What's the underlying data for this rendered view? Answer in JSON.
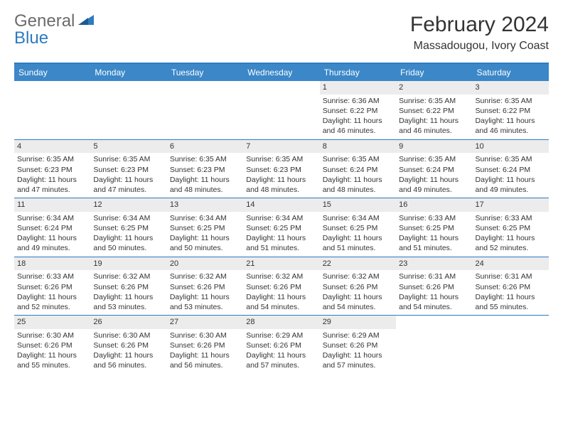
{
  "brand": {
    "text1": "General",
    "text2": "Blue"
  },
  "title": "February 2024",
  "location": "Massadougou, Ivory Coast",
  "colors": {
    "header_bar": "#3b87c8",
    "border": "#2d7bc0",
    "daynum_bg": "#ececec",
    "text": "#333333",
    "logo_gray": "#6b6b6b",
    "logo_blue": "#2d7bc0",
    "background": "#ffffff"
  },
  "weekdays": [
    "Sunday",
    "Monday",
    "Tuesday",
    "Wednesday",
    "Thursday",
    "Friday",
    "Saturday"
  ],
  "weeks": [
    [
      {
        "empty": true
      },
      {
        "empty": true
      },
      {
        "empty": true
      },
      {
        "empty": true
      },
      {
        "n": "1",
        "sunrise": "Sunrise: 6:36 AM",
        "sunset": "Sunset: 6:22 PM",
        "daylight": "Daylight: 11 hours and 46 minutes."
      },
      {
        "n": "2",
        "sunrise": "Sunrise: 6:35 AM",
        "sunset": "Sunset: 6:22 PM",
        "daylight": "Daylight: 11 hours and 46 minutes."
      },
      {
        "n": "3",
        "sunrise": "Sunrise: 6:35 AM",
        "sunset": "Sunset: 6:22 PM",
        "daylight": "Daylight: 11 hours and 46 minutes."
      }
    ],
    [
      {
        "n": "4",
        "sunrise": "Sunrise: 6:35 AM",
        "sunset": "Sunset: 6:23 PM",
        "daylight": "Daylight: 11 hours and 47 minutes."
      },
      {
        "n": "5",
        "sunrise": "Sunrise: 6:35 AM",
        "sunset": "Sunset: 6:23 PM",
        "daylight": "Daylight: 11 hours and 47 minutes."
      },
      {
        "n": "6",
        "sunrise": "Sunrise: 6:35 AM",
        "sunset": "Sunset: 6:23 PM",
        "daylight": "Daylight: 11 hours and 48 minutes."
      },
      {
        "n": "7",
        "sunrise": "Sunrise: 6:35 AM",
        "sunset": "Sunset: 6:23 PM",
        "daylight": "Daylight: 11 hours and 48 minutes."
      },
      {
        "n": "8",
        "sunrise": "Sunrise: 6:35 AM",
        "sunset": "Sunset: 6:24 PM",
        "daylight": "Daylight: 11 hours and 48 minutes."
      },
      {
        "n": "9",
        "sunrise": "Sunrise: 6:35 AM",
        "sunset": "Sunset: 6:24 PM",
        "daylight": "Daylight: 11 hours and 49 minutes."
      },
      {
        "n": "10",
        "sunrise": "Sunrise: 6:35 AM",
        "sunset": "Sunset: 6:24 PM",
        "daylight": "Daylight: 11 hours and 49 minutes."
      }
    ],
    [
      {
        "n": "11",
        "sunrise": "Sunrise: 6:34 AM",
        "sunset": "Sunset: 6:24 PM",
        "daylight": "Daylight: 11 hours and 49 minutes."
      },
      {
        "n": "12",
        "sunrise": "Sunrise: 6:34 AM",
        "sunset": "Sunset: 6:25 PM",
        "daylight": "Daylight: 11 hours and 50 minutes."
      },
      {
        "n": "13",
        "sunrise": "Sunrise: 6:34 AM",
        "sunset": "Sunset: 6:25 PM",
        "daylight": "Daylight: 11 hours and 50 minutes."
      },
      {
        "n": "14",
        "sunrise": "Sunrise: 6:34 AM",
        "sunset": "Sunset: 6:25 PM",
        "daylight": "Daylight: 11 hours and 51 minutes."
      },
      {
        "n": "15",
        "sunrise": "Sunrise: 6:34 AM",
        "sunset": "Sunset: 6:25 PM",
        "daylight": "Daylight: 11 hours and 51 minutes."
      },
      {
        "n": "16",
        "sunrise": "Sunrise: 6:33 AM",
        "sunset": "Sunset: 6:25 PM",
        "daylight": "Daylight: 11 hours and 51 minutes."
      },
      {
        "n": "17",
        "sunrise": "Sunrise: 6:33 AM",
        "sunset": "Sunset: 6:25 PM",
        "daylight": "Daylight: 11 hours and 52 minutes."
      }
    ],
    [
      {
        "n": "18",
        "sunrise": "Sunrise: 6:33 AM",
        "sunset": "Sunset: 6:26 PM",
        "daylight": "Daylight: 11 hours and 52 minutes."
      },
      {
        "n": "19",
        "sunrise": "Sunrise: 6:32 AM",
        "sunset": "Sunset: 6:26 PM",
        "daylight": "Daylight: 11 hours and 53 minutes."
      },
      {
        "n": "20",
        "sunrise": "Sunrise: 6:32 AM",
        "sunset": "Sunset: 6:26 PM",
        "daylight": "Daylight: 11 hours and 53 minutes."
      },
      {
        "n": "21",
        "sunrise": "Sunrise: 6:32 AM",
        "sunset": "Sunset: 6:26 PM",
        "daylight": "Daylight: 11 hours and 54 minutes."
      },
      {
        "n": "22",
        "sunrise": "Sunrise: 6:32 AM",
        "sunset": "Sunset: 6:26 PM",
        "daylight": "Daylight: 11 hours and 54 minutes."
      },
      {
        "n": "23",
        "sunrise": "Sunrise: 6:31 AM",
        "sunset": "Sunset: 6:26 PM",
        "daylight": "Daylight: 11 hours and 54 minutes."
      },
      {
        "n": "24",
        "sunrise": "Sunrise: 6:31 AM",
        "sunset": "Sunset: 6:26 PM",
        "daylight": "Daylight: 11 hours and 55 minutes."
      }
    ],
    [
      {
        "n": "25",
        "sunrise": "Sunrise: 6:30 AM",
        "sunset": "Sunset: 6:26 PM",
        "daylight": "Daylight: 11 hours and 55 minutes."
      },
      {
        "n": "26",
        "sunrise": "Sunrise: 6:30 AM",
        "sunset": "Sunset: 6:26 PM",
        "daylight": "Daylight: 11 hours and 56 minutes."
      },
      {
        "n": "27",
        "sunrise": "Sunrise: 6:30 AM",
        "sunset": "Sunset: 6:26 PM",
        "daylight": "Daylight: 11 hours and 56 minutes."
      },
      {
        "n": "28",
        "sunrise": "Sunrise: 6:29 AM",
        "sunset": "Sunset: 6:26 PM",
        "daylight": "Daylight: 11 hours and 57 minutes."
      },
      {
        "n": "29",
        "sunrise": "Sunrise: 6:29 AM",
        "sunset": "Sunset: 6:26 PM",
        "daylight": "Daylight: 11 hours and 57 minutes."
      },
      {
        "empty": true
      },
      {
        "empty": true
      }
    ]
  ]
}
